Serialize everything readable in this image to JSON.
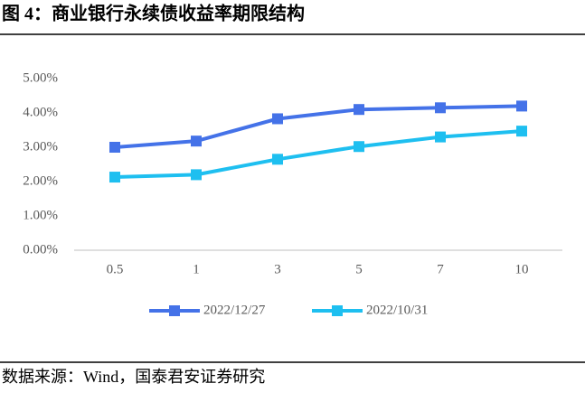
{
  "title": "图 4：商业银行永续债收益率期限结构",
  "source": "数据来源：Wind，国泰君安证券研究",
  "chart_data": {
    "type": "line",
    "categories": [
      "0.5",
      "1",
      "3",
      "5",
      "7",
      "10"
    ],
    "series": [
      {
        "name": "2022/12/27",
        "color": "#4472e8",
        "values": [
          3.0,
          3.18,
          3.83,
          4.1,
          4.15,
          4.2
        ]
      },
      {
        "name": "2022/10/31",
        "color": "#1ebff0",
        "values": [
          2.13,
          2.2,
          2.65,
          3.02,
          3.3,
          3.47
        ]
      }
    ],
    "ylim": [
      0,
      5
    ],
    "yticks": [
      {
        "value": 0,
        "label": "0.00%"
      },
      {
        "value": 1,
        "label": "1.00%"
      },
      {
        "value": 2,
        "label": "2.00%"
      },
      {
        "value": 3,
        "label": "3.00%"
      },
      {
        "value": 4,
        "label": "4.00%"
      },
      {
        "value": 5,
        "label": "5.00%"
      }
    ],
    "grid": false,
    "legend": "bottom"
  }
}
